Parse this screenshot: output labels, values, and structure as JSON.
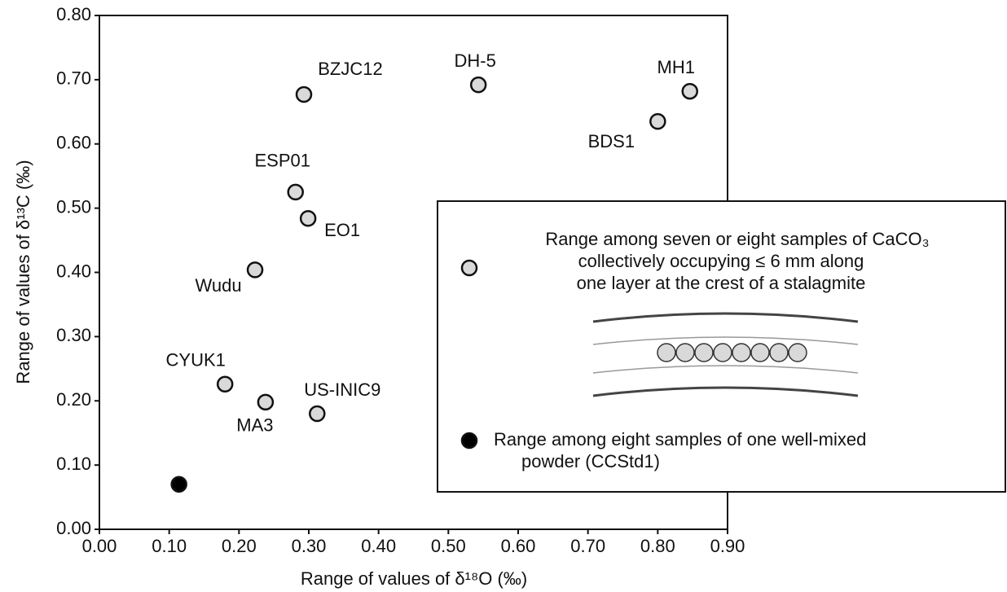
{
  "chart_data": {
    "type": "scatter",
    "x_label": "Range of values of δ¹⁸O (‰)",
    "y_label": "Range of values of δ¹³C (‰)",
    "xlim": [
      0,
      0.9
    ],
    "ylim": [
      0,
      0.8
    ],
    "xticks": [
      {
        "value": 0,
        "label": "0.00"
      },
      {
        "value": 0.1,
        "label": "0.10"
      },
      {
        "value": 0.2,
        "label": "0.20"
      },
      {
        "value": 0.3,
        "label": "0.30"
      },
      {
        "value": 0.4,
        "label": "0.40"
      },
      {
        "value": 0.5,
        "label": "0.50"
      },
      {
        "value": 0.6,
        "label": "0.60"
      },
      {
        "value": 0.7,
        "label": "0.70"
      },
      {
        "value": 0.8,
        "label": "0.80"
      },
      {
        "value": 0.9,
        "label": "0.90"
      }
    ],
    "yticks": [
      {
        "value": 0,
        "label": "0.00"
      },
      {
        "value": 0.1,
        "label": "0.10"
      },
      {
        "value": 0.2,
        "label": "0.20"
      },
      {
        "value": 0.3,
        "label": "0.30"
      },
      {
        "value": 0.4,
        "label": "0.40"
      },
      {
        "value": 0.5,
        "label": "0.50"
      },
      {
        "value": 0.6,
        "label": "0.60"
      },
      {
        "value": 0.7,
        "label": "0.70"
      },
      {
        "value": 0.8,
        "label": "0.80"
      }
    ],
    "series": [
      {
        "name": [
          "Range among seven or eight samples of CaCO₃",
          "collectively occupying ≤ 6 mm along",
          "one layer at the crest of a stalagmite"
        ],
        "color": "#d9d9d9",
        "point_labels": [
          "BZJC12",
          "DH-5",
          "MH1",
          "BDS1",
          "ESP01",
          "EO1",
          "Wudu",
          "CYUK1",
          "MA3",
          "US-INIC9"
        ],
        "x": [
          0.293,
          0.543,
          0.846,
          0.8,
          0.281,
          0.299,
          0.223,
          0.18,
          0.238,
          0.312
        ],
        "values": [
          0.677,
          0.692,
          0.682,
          0.635,
          0.525,
          0.484,
          0.404,
          0.226,
          0.198,
          0.18
        ]
      },
      {
        "name": [
          "Range among eight samples of one well-mixed",
          "powder (CCStd1)"
        ],
        "color": "#000000",
        "x": [
          0.114
        ],
        "values": [
          0.07
        ]
      }
    ]
  }
}
